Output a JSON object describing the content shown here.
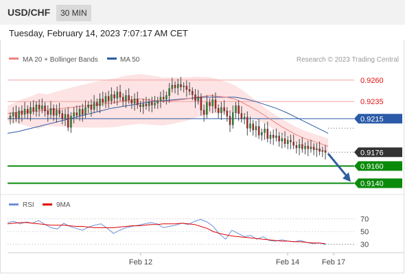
{
  "header": {
    "symbol": "USD/CHF",
    "timeframe": "30 MIN"
  },
  "datetime": "Tuesday, February 14, 2023 7:07:17 AM CET",
  "credit": "Research © 2023 Trading Central",
  "colors": {
    "ma20": "#f08080",
    "ma50": "#2a5aa8",
    "band_fill": "#fde3e3",
    "support": "#0a8a0a",
    "resistance": "#f4a0a0",
    "price_tag": "#333333",
    "arrow": "#2e5f9e",
    "rsi": "#6b8fd9",
    "rsi_ma": "#e00000"
  },
  "chart_data": [
    {
      "type": "candlestick",
      "title": "",
      "legend": [
        {
          "name": "MA 20 + Bollinger Bands",
          "color": "#f08080"
        },
        {
          "name": "MA 50",
          "color": "#2a5aa8"
        }
      ],
      "ylim": [
        0.913,
        0.9275
      ],
      "x_ticks": [
        "Feb 12",
        "Feb 14",
        "Feb 17"
      ],
      "levels": [
        {
          "value": 0.926,
          "label": "0.9260",
          "kind": "resistance"
        },
        {
          "value": 0.9235,
          "label": "0.9235",
          "kind": "resistance"
        },
        {
          "value": 0.9215,
          "label": "0.9215",
          "kind": "pivot"
        },
        {
          "value": 0.9176,
          "label": "0.9176",
          "kind": "last_price"
        },
        {
          "value": 0.916,
          "label": "0.9160",
          "kind": "support"
        },
        {
          "value": 0.914,
          "label": "0.9140",
          "kind": "support"
        }
      ],
      "candles_close": [
        0.9218,
        0.9222,
        0.9216,
        0.9224,
        0.922,
        0.9226,
        0.9221,
        0.9228,
        0.9224,
        0.9231,
        0.9226,
        0.923,
        0.9224,
        0.922,
        0.9227,
        0.9219,
        0.9225,
        0.9221,
        0.9215,
        0.922,
        0.9205,
        0.9218,
        0.9222,
        0.9219,
        0.9226,
        0.922,
        0.9228,
        0.9231,
        0.9226,
        0.9234,
        0.923,
        0.9238,
        0.9234,
        0.9241,
        0.9236,
        0.9243,
        0.9239,
        0.9246,
        0.924,
        0.9236,
        0.9242,
        0.9237,
        0.9233,
        0.9238,
        0.9231,
        0.9229,
        0.9232,
        0.923,
        0.9234,
        0.9231,
        0.9233,
        0.9236,
        0.924,
        0.9238,
        0.9242,
        0.925,
        0.9254,
        0.9251,
        0.9255,
        0.9252,
        0.9253,
        0.9249,
        0.9247,
        0.9243,
        0.9236,
        0.924,
        0.9225,
        0.922,
        0.9234,
        0.923,
        0.9237,
        0.9227,
        0.9222,
        0.9228,
        0.9224,
        0.9218,
        0.9208,
        0.9222,
        0.923,
        0.9221,
        0.9215,
        0.9217,
        0.9204,
        0.9209,
        0.9202,
        0.9206,
        0.9196,
        0.9199,
        0.9203,
        0.9192,
        0.9196,
        0.9193,
        0.9195,
        0.9189,
        0.9192,
        0.9186,
        0.919,
        0.9188,
        0.9184,
        0.9181,
        0.9185,
        0.918,
        0.9183,
        0.918,
        0.9182,
        0.9179,
        0.918,
        0.9177,
        0.9178,
        0.9176
      ],
      "ma20": [
        0.9221,
        0.9222,
        0.9223,
        0.9223,
        0.9224,
        0.9225,
        0.9226,
        0.9227,
        0.9228,
        0.9229,
        0.923,
        0.9231,
        0.9232,
        0.9233,
        0.9234,
        0.9236,
        0.9237,
        0.9238,
        0.9237,
        0.9236,
        0.9235,
        0.9236,
        0.9237,
        0.9238,
        0.924,
        0.9241,
        0.9242,
        0.9241,
        0.924,
        0.9238,
        0.9234,
        0.9229,
        0.9224,
        0.9218,
        0.9212,
        0.9206,
        0.9201,
        0.9196,
        0.9192,
        0.9189,
        0.9186,
        0.9183
      ],
      "ma50": [
        0.9198,
        0.92,
        0.9203,
        0.9206,
        0.9209,
        0.9212,
        0.9215,
        0.9218,
        0.9221,
        0.9224,
        0.9227,
        0.9229,
        0.9231,
        0.9233,
        0.9235,
        0.9236,
        0.9237,
        0.9238,
        0.9239,
        0.924,
        0.924,
        0.924,
        0.924,
        0.9238,
        0.9235,
        0.9231,
        0.9227,
        0.9222,
        0.9216,
        0.921,
        0.9204,
        0.9198
      ],
      "forecast": {
        "from": 0.9176,
        "to": 0.914,
        "direction": "down"
      }
    },
    {
      "type": "line",
      "title": "",
      "legend": [
        {
          "name": "RSI",
          "color": "#6b8fd9"
        },
        {
          "name": "9MA",
          "color": "#e00000"
        }
      ],
      "ylim": [
        20,
        80
      ],
      "y_ticks": [
        70,
        50,
        30
      ],
      "series": [
        {
          "name": "RSI",
          "values": [
            64,
            66,
            62,
            65,
            63,
            67,
            61,
            56,
            54,
            63,
            58,
            55,
            52,
            57,
            60,
            62,
            55,
            47,
            52,
            56,
            58,
            60,
            62,
            64,
            62,
            56,
            58,
            60,
            63,
            61,
            66,
            69,
            65,
            58,
            46,
            38,
            52,
            47,
            42,
            44,
            38,
            42,
            36,
            35,
            37,
            35,
            34,
            36,
            33,
            31,
            32,
            30
          ]
        },
        {
          "name": "9MA",
          "values": [
            62,
            63,
            64,
            64,
            63,
            62,
            61,
            60,
            60,
            60,
            59,
            58,
            58,
            57,
            56,
            56,
            56,
            56,
            57,
            58,
            59,
            59,
            60,
            61,
            61,
            62,
            62,
            62,
            63,
            62,
            61,
            58,
            55,
            50,
            47,
            45,
            43,
            42,
            41,
            40,
            39,
            38,
            37,
            36,
            35,
            35,
            34,
            34,
            33,
            32,
            32,
            31
          ]
        }
      ]
    }
  ]
}
